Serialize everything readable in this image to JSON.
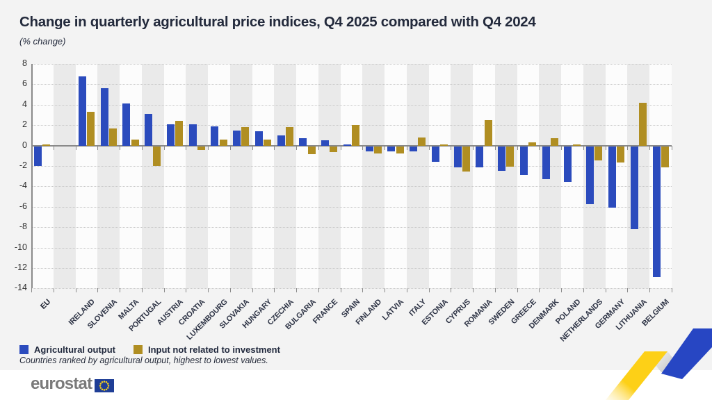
{
  "title": "Change in quarterly agricultural price indices, Q4 2025 compared with Q4 2024",
  "subtitle": "(% change)",
  "chart_data": {
    "type": "bar",
    "categories": [
      "EU",
      "IRELAND",
      "SLOVENIA",
      "MALTA",
      "PORTUGAL",
      "AUSTRIA",
      "CROATIA",
      "LUXEMBOURG",
      "SLOVAKIA",
      "HUNGARY",
      "CZECHIA",
      "BULGARIA",
      "FRANCE",
      "SPAIN",
      "FINLAND",
      "LATVIA",
      "ITALY",
      "ESTONIA",
      "CYPRUS",
      "ROMANIA",
      "SWEDEN",
      "GREECE",
      "DENMARK",
      "POLAND",
      "NETHERLANDS",
      "GERMANY",
      "LITHUANIA",
      "BELGIUM"
    ],
    "series": [
      {
        "name": "Agricultural output",
        "color": "#2b4bbd",
        "values": [
          -1.9,
          6.8,
          5.6,
          4.1,
          3.1,
          2.1,
          2.1,
          1.9,
          1.5,
          1.4,
          1.0,
          0.7,
          0.5,
          0.1,
          -0.5,
          -0.5,
          -0.5,
          -1.5,
          -2.1,
          -2.1,
          -2.4,
          -2.8,
          -3.2,
          -3.5,
          -5.7,
          -6.0,
          -8.1,
          -12.8
        ]
      },
      {
        "name": "Input not related to investment",
        "color": "#b08e22",
        "values": [
          0.1,
          3.3,
          1.7,
          0.6,
          -1.9,
          2.4,
          -0.4,
          0.6,
          1.8,
          0.6,
          1.8,
          -0.8,
          -0.6,
          2.0,
          -0.7,
          -0.7,
          0.8,
          0.1,
          -2.5,
          2.5,
          -2.0,
          0.3,
          0.7,
          0.1,
          -1.4,
          -1.6,
          4.2,
          -2.1
        ]
      }
    ],
    "ylim": [
      -14,
      8
    ],
    "yticks": [
      8,
      6,
      4,
      2,
      0,
      -2,
      -4,
      -6,
      -8,
      -10,
      -12,
      -14
    ],
    "xlabel": "",
    "ylabel": "",
    "grid": "horizontal-dotted",
    "legend_position": "bottom-left",
    "gap_after_first_category": true,
    "background_stripes": "alternating vertical"
  },
  "footnote": "Countries ranked by agricultural output, highest to lowest values.",
  "logo": {
    "text": "eurostat"
  },
  "colors": {
    "background": "#f3f3f3",
    "stripe_gray": "#eaeaea",
    "stripe_white": "#fcfcfc",
    "axis": "#8a8a8a",
    "grid": "#c7c7c7",
    "title_text": "#232a3c",
    "logo_gray": "#7a7a7a",
    "flag_blue": "#1f3e96",
    "star_yellow": "#ffd617",
    "ribbon_yellow": "#fdd017",
    "ribbon_blue": "#2746c3"
  }
}
